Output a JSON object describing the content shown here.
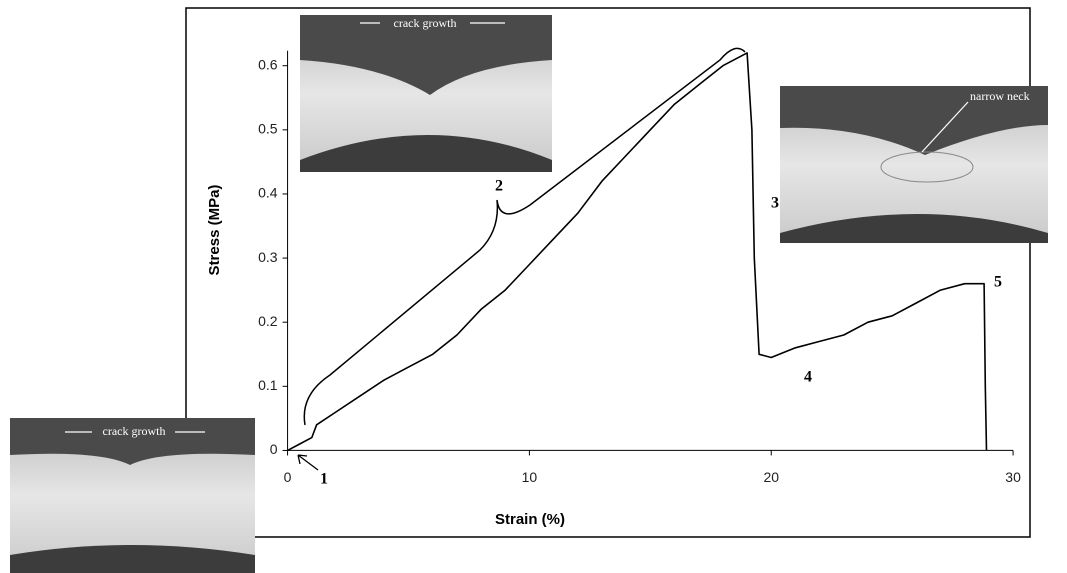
{
  "chart_data": {
    "type": "line",
    "xlabel": "Strain (%)",
    "ylabel": "Stress (MPa)",
    "x": [
      0,
      0.5,
      1,
      1.2,
      2,
      3,
      4,
      5,
      6,
      7,
      8,
      9,
      10,
      11,
      12,
      13,
      14,
      15,
      16,
      17,
      18,
      19,
      19.2,
      19.3,
      19.5,
      20,
      21,
      22,
      23,
      24,
      25,
      26,
      27,
      28,
      28.8,
      28.85,
      28.9
    ],
    "series": [
      {
        "color": "#000000",
        "values": [
          0,
          0.01,
          0.02,
          0.04,
          0.06,
          0.085,
          0.11,
          0.13,
          0.15,
          0.18,
          0.22,
          0.25,
          0.29,
          0.33,
          0.37,
          0.42,
          0.46,
          0.5,
          0.54,
          0.57,
          0.6,
          0.62,
          0.5,
          0.3,
          0.15,
          0.145,
          0.16,
          0.17,
          0.18,
          0.2,
          0.21,
          0.23,
          0.25,
          0.26,
          0.26,
          0.1,
          0
        ]
      }
    ],
    "xlim": [
      -4.2,
      30.7
    ],
    "ylim": [
      -0.135,
      0.69
    ],
    "xticks": [
      0,
      10,
      20,
      30
    ],
    "yticks": [
      0,
      0.1,
      0.2,
      0.3,
      0.4,
      0.5,
      0.6
    ],
    "annotations": [
      "1",
      "2",
      "3",
      "4",
      "5"
    ],
    "insets": [
      {
        "caption": "crack growth"
      },
      {
        "caption": "narrow neck"
      },
      {
        "caption": "crack growth"
      }
    ]
  }
}
